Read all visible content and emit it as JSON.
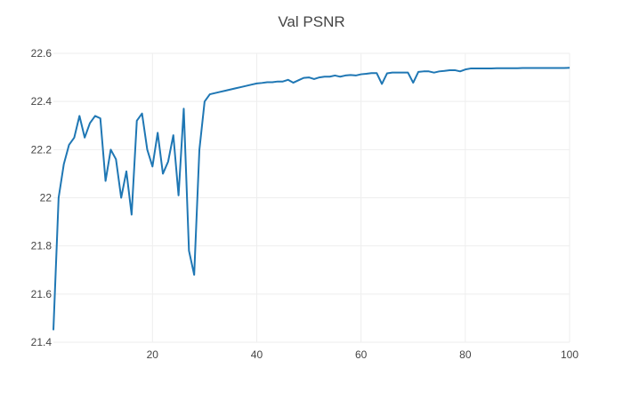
{
  "chart_data": {
    "type": "line",
    "title": "Val PSNR",
    "xlabel": "",
    "ylabel": "",
    "xlim": [
      1,
      100
    ],
    "ylim": [
      21.4,
      22.6
    ],
    "grid": true,
    "x_ticks": [
      20,
      40,
      60,
      80,
      100
    ],
    "y_ticks": [
      21.4,
      21.6,
      21.8,
      22,
      22.2,
      22.4,
      22.6
    ],
    "y_tick_labels": [
      "21.4",
      "21.6",
      "21.8",
      "22",
      "22.2",
      "22.4",
      "22.6"
    ],
    "colors": {
      "series": "#1f77b4",
      "grid": "#eeeeee",
      "text": "#444444"
    },
    "series": [
      {
        "x": [
          1,
          2,
          3,
          4,
          5,
          6,
          7,
          8,
          9,
          10,
          11,
          12,
          13,
          14,
          15,
          16,
          17,
          18,
          19,
          20,
          21,
          22,
          23,
          24,
          25,
          26,
          27,
          28,
          29,
          30,
          31,
          32,
          33,
          34,
          35,
          36,
          37,
          38,
          39,
          40,
          41,
          42,
          43,
          44,
          45,
          46,
          47,
          48,
          49,
          50,
          51,
          52,
          53,
          54,
          55,
          56,
          57,
          58,
          59,
          60,
          61,
          62,
          63,
          64,
          65,
          66,
          67,
          68,
          69,
          70,
          71,
          72,
          73,
          74,
          75,
          76,
          77,
          78,
          79,
          80,
          81,
          82,
          83,
          84,
          85,
          86,
          87,
          88,
          89,
          90,
          91,
          92,
          93,
          94,
          95,
          96,
          97,
          98,
          99,
          100
        ],
        "values": [
          21.45,
          22.0,
          22.14,
          22.22,
          22.25,
          22.34,
          22.25,
          22.31,
          22.34,
          22.33,
          22.07,
          22.2,
          22.16,
          22.0,
          22.11,
          21.93,
          22.32,
          22.35,
          22.2,
          22.13,
          22.27,
          22.1,
          22.15,
          22.26,
          22.01,
          22.37,
          21.78,
          21.68,
          22.2,
          22.4,
          22.43,
          22.435,
          22.44,
          22.445,
          22.45,
          22.455,
          22.46,
          22.465,
          22.47,
          22.475,
          22.477,
          22.48,
          22.48,
          22.483,
          22.483,
          22.49,
          22.478,
          22.488,
          22.498,
          22.5,
          22.493,
          22.5,
          22.503,
          22.503,
          22.508,
          22.503,
          22.508,
          22.51,
          22.508,
          22.513,
          22.515,
          22.518,
          22.518,
          22.473,
          22.517,
          22.52,
          22.52,
          22.52,
          22.52,
          22.478,
          22.523,
          22.525,
          22.525,
          22.52,
          22.525,
          22.527,
          22.53,
          22.53,
          22.525,
          22.533,
          22.537,
          22.537,
          22.537,
          22.537,
          22.537,
          22.538,
          22.538,
          22.538,
          22.538,
          22.538,
          22.539,
          22.539,
          22.539,
          22.539,
          22.539,
          22.539,
          22.539,
          22.539,
          22.539,
          22.54
        ]
      }
    ]
  }
}
